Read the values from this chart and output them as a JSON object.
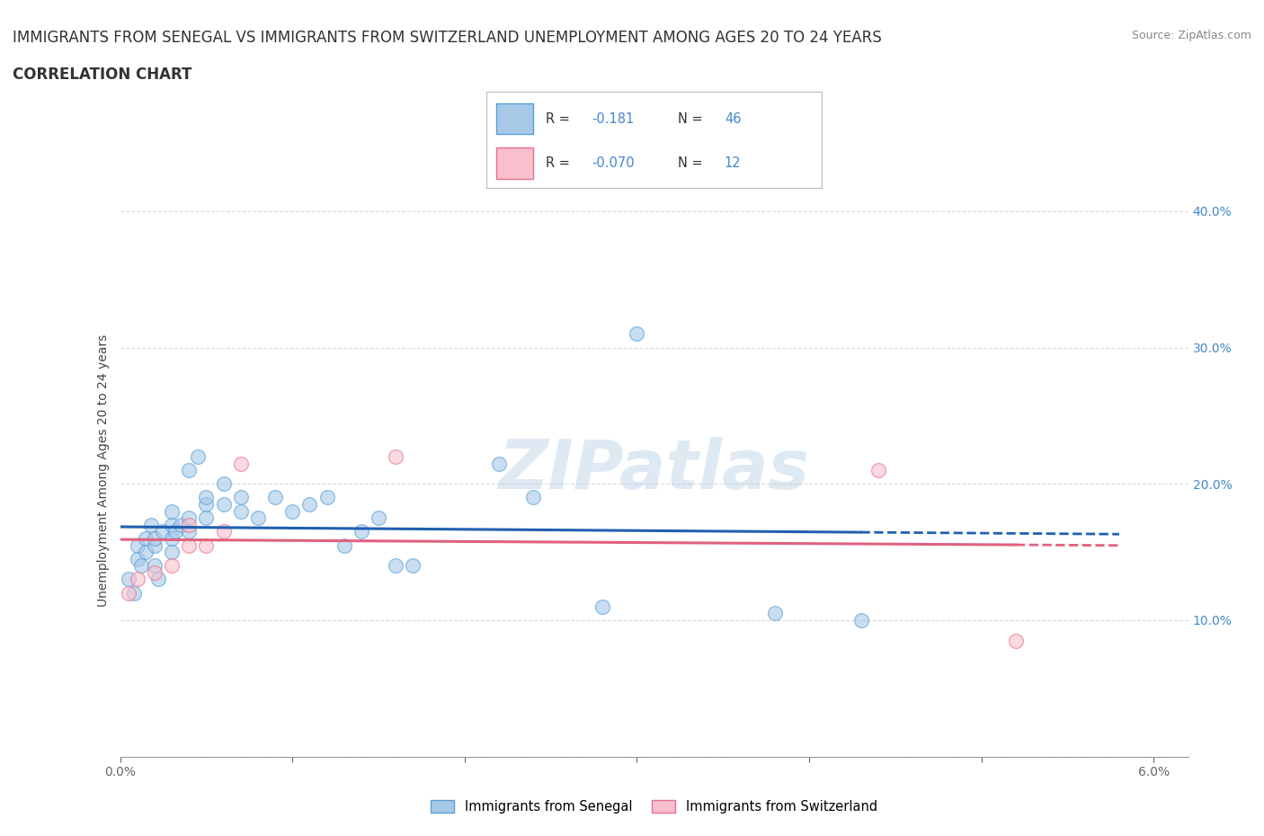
{
  "title_line1": "IMMIGRANTS FROM SENEGAL VS IMMIGRANTS FROM SWITZERLAND UNEMPLOYMENT AMONG AGES 20 TO 24 YEARS",
  "title_line2": "CORRELATION CHART",
  "source_text": "Source: ZipAtlas.com",
  "ylabel": "Unemployment Among Ages 20 to 24 years",
  "xlim": [
    0.0,
    0.062
  ],
  "ylim": [
    0.0,
    0.42
  ],
  "xticks": [
    0.0,
    0.01,
    0.02,
    0.03,
    0.04,
    0.05,
    0.06
  ],
  "xticklabels_outer": [
    "0.0%",
    "6.0%"
  ],
  "yticks": [
    0.0,
    0.1,
    0.2,
    0.3,
    0.4
  ],
  "right_yticks": [
    0.1,
    0.2,
    0.3,
    0.4
  ],
  "right_yticklabels": [
    "10.0%",
    "20.0%",
    "30.0%",
    "40.0%"
  ],
  "color_senegal_fill": "#a8c8e8",
  "color_senegal_edge": "#5a9fd4",
  "color_switzerland_fill": "#f8c0cc",
  "color_switzerland_edge": "#e87090",
  "color_senegal_line": "#2060b0",
  "color_switzerland_line": "#e06080",
  "R_senegal": -0.181,
  "N_senegal": 46,
  "R_switzerland": -0.07,
  "N_switzerland": 12,
  "watermark": "ZIPatlas",
  "senegal_x": [
    0.0005,
    0.0008,
    0.001,
    0.001,
    0.0012,
    0.0015,
    0.0015,
    0.0018,
    0.002,
    0.002,
    0.002,
    0.0022,
    0.0025,
    0.003,
    0.003,
    0.003,
    0.003,
    0.0032,
    0.0035,
    0.004,
    0.004,
    0.004,
    0.0045,
    0.005,
    0.005,
    0.005,
    0.006,
    0.006,
    0.007,
    0.007,
    0.008,
    0.009,
    0.01,
    0.011,
    0.012,
    0.013,
    0.014,
    0.015,
    0.016,
    0.017,
    0.022,
    0.024,
    0.028,
    0.038,
    0.043,
    0.03
  ],
  "senegal_y": [
    0.13,
    0.12,
    0.155,
    0.145,
    0.14,
    0.16,
    0.15,
    0.17,
    0.155,
    0.16,
    0.14,
    0.13,
    0.165,
    0.17,
    0.16,
    0.18,
    0.15,
    0.165,
    0.17,
    0.175,
    0.165,
    0.21,
    0.22,
    0.185,
    0.19,
    0.175,
    0.185,
    0.2,
    0.18,
    0.19,
    0.175,
    0.19,
    0.18,
    0.185,
    0.19,
    0.155,
    0.165,
    0.175,
    0.14,
    0.14,
    0.215,
    0.19,
    0.11,
    0.105,
    0.1,
    0.31
  ],
  "switzerland_x": [
    0.0005,
    0.001,
    0.002,
    0.003,
    0.004,
    0.004,
    0.005,
    0.006,
    0.007,
    0.016,
    0.044,
    0.052
  ],
  "switzerland_y": [
    0.12,
    0.13,
    0.135,
    0.14,
    0.155,
    0.17,
    0.155,
    0.165,
    0.215,
    0.22,
    0.21,
    0.085
  ],
  "legend_label_senegal": "Immigrants from Senegal",
  "legend_label_switzerland": "Immigrants from Switzerland",
  "title_fontsize": 12,
  "axis_label_fontsize": 10,
  "tick_fontsize": 10,
  "background_color": "#ffffff",
  "grid_color": "#c0c0c0"
}
